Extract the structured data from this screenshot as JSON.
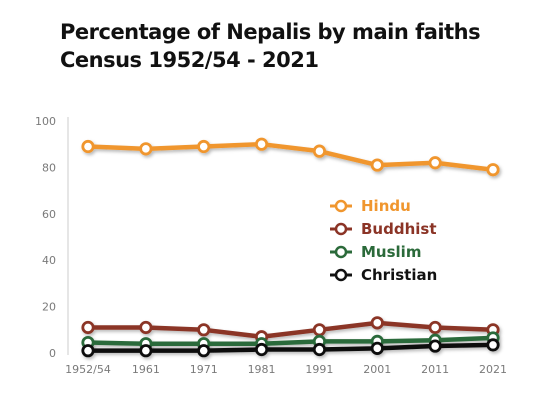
{
  "chart_data": {
    "type": "line",
    "title": "Percentage of Nepalis by main faiths",
    "subtitle": "Census 1952/54 - 2021",
    "categories": [
      "1952/54",
      "1961",
      "1971",
      "1981",
      "1991",
      "2001",
      "2011",
      "2021"
    ],
    "ylim": [
      0,
      100
    ],
    "yticks": [
      0,
      20,
      40,
      60,
      80,
      100
    ],
    "grid": false,
    "legend_position": "center-right",
    "series": [
      {
        "name": "Hindu",
        "color": "#f0962e",
        "values": [
          89,
          88,
          89,
          90,
          87,
          81,
          82,
          79
        ]
      },
      {
        "name": "Buddhist",
        "color": "#8b3426",
        "values": [
          11,
          11,
          10,
          7,
          10,
          13,
          11,
          10
        ]
      },
      {
        "name": "Muslim",
        "color": "#2b6a3a",
        "values": [
          4.5,
          4,
          4,
          4,
          5,
          5,
          5.5,
          6.5
        ]
      },
      {
        "name": "Christian",
        "color": "#111111",
        "values": [
          1,
          1,
          1,
          1.5,
          1.5,
          2,
          3,
          3.5
        ]
      }
    ]
  }
}
